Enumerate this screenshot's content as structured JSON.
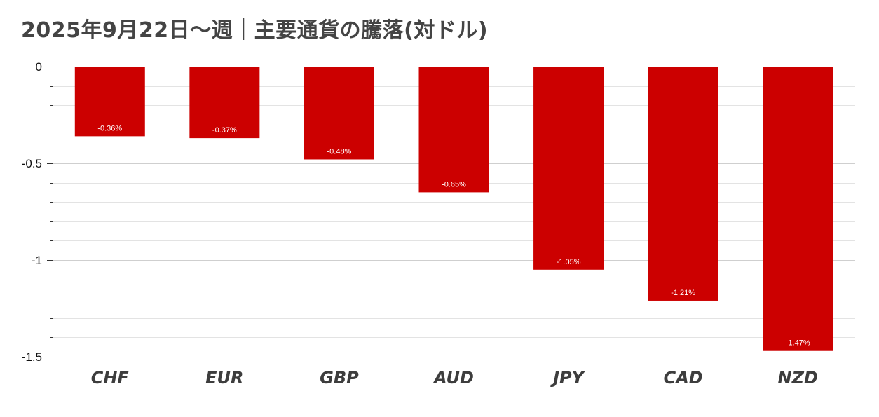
{
  "chart_data": {
    "type": "bar",
    "title": "2025年9月22日～週｜主要通貨の騰落(対ドル)",
    "xlabel": "",
    "ylabel": "",
    "categories": [
      "CHF",
      "EUR",
      "GBP",
      "AUD",
      "JPY",
      "CAD",
      "NZD"
    ],
    "values": [
      -0.36,
      -0.37,
      -0.48,
      -0.65,
      -1.05,
      -1.21,
      -1.47
    ],
    "data_labels": [
      "-0.36%",
      "-0.37%",
      "-0.48%",
      "-0.65%",
      "-1.05%",
      "-1.21%",
      "-1.47%"
    ],
    "ylim": [
      -1.5,
      0
    ],
    "yticks": [
      0,
      -0.5,
      -1,
      -1.5
    ],
    "ytick_labels": [
      "0",
      "-0.5",
      "-1",
      "-1.5"
    ],
    "grid": true,
    "legend": "none",
    "bar_color": "#cc0000",
    "grid_color": "#e3e3e3",
    "axis_color": "#333333"
  }
}
